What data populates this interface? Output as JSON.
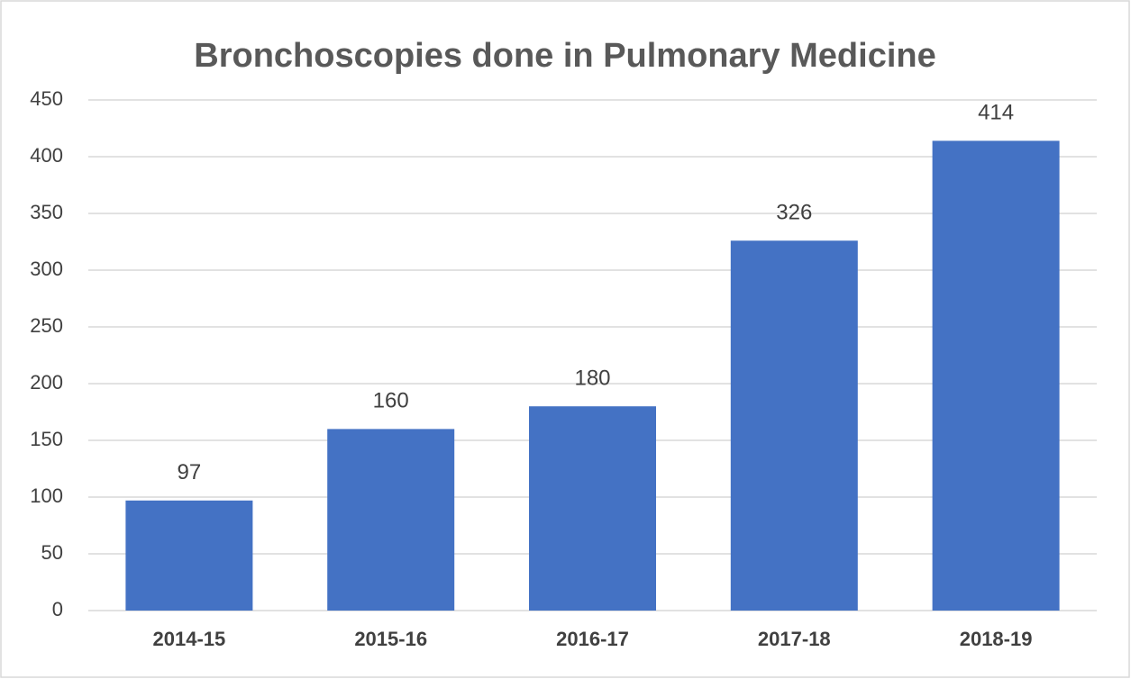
{
  "chart_data": {
    "type": "bar",
    "title": "Bronchoscopies done in Pulmonary Medicine",
    "categories": [
      "2014-15",
      "2015-16",
      "2016-17",
      "2017-18",
      "2018-19"
    ],
    "values": [
      97,
      160,
      180,
      326,
      414
    ],
    "color": "#4472c4",
    "ylim": [
      0,
      450
    ],
    "yticks": [
      0,
      50,
      100,
      150,
      200,
      250,
      300,
      350,
      400,
      450
    ],
    "grid": true
  }
}
